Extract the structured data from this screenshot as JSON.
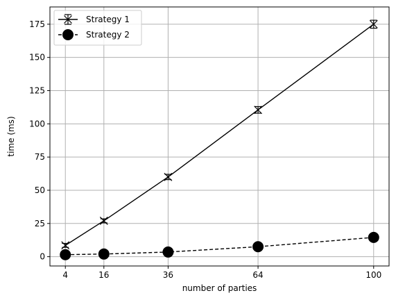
{
  "chart_data": {
    "type": "line",
    "title": "",
    "xlabel": "number of parties",
    "ylabel": "time (ms)",
    "x": [
      4,
      16,
      36,
      64,
      100
    ],
    "xticks": [
      "4",
      "16",
      "36",
      "64",
      "100"
    ],
    "yticks": [
      "0",
      "25",
      "50",
      "75",
      "100",
      "125",
      "150",
      "175"
    ],
    "xlim": [
      -0.8,
      104.8
    ],
    "ylim": [
      -7,
      188
    ],
    "grid": true,
    "legend_position": "top-left",
    "series": [
      {
        "name": "Strategy 1",
        "values": [
          8.5,
          27,
          60,
          110.5,
          175
        ],
        "errors": [
          1.5,
          1.5,
          2.0,
          2.5,
          3.0
        ],
        "marker": "x-errorbar",
        "linestyle": "solid",
        "color": "#000000"
      },
      {
        "name": "Strategy 2",
        "values": [
          1.5,
          2,
          3.5,
          7.5,
          14.5
        ],
        "errors": [
          0.5,
          0.5,
          0.5,
          0.5,
          0.5
        ],
        "marker": "circle",
        "linestyle": "dashed",
        "color": "#000000"
      }
    ]
  }
}
